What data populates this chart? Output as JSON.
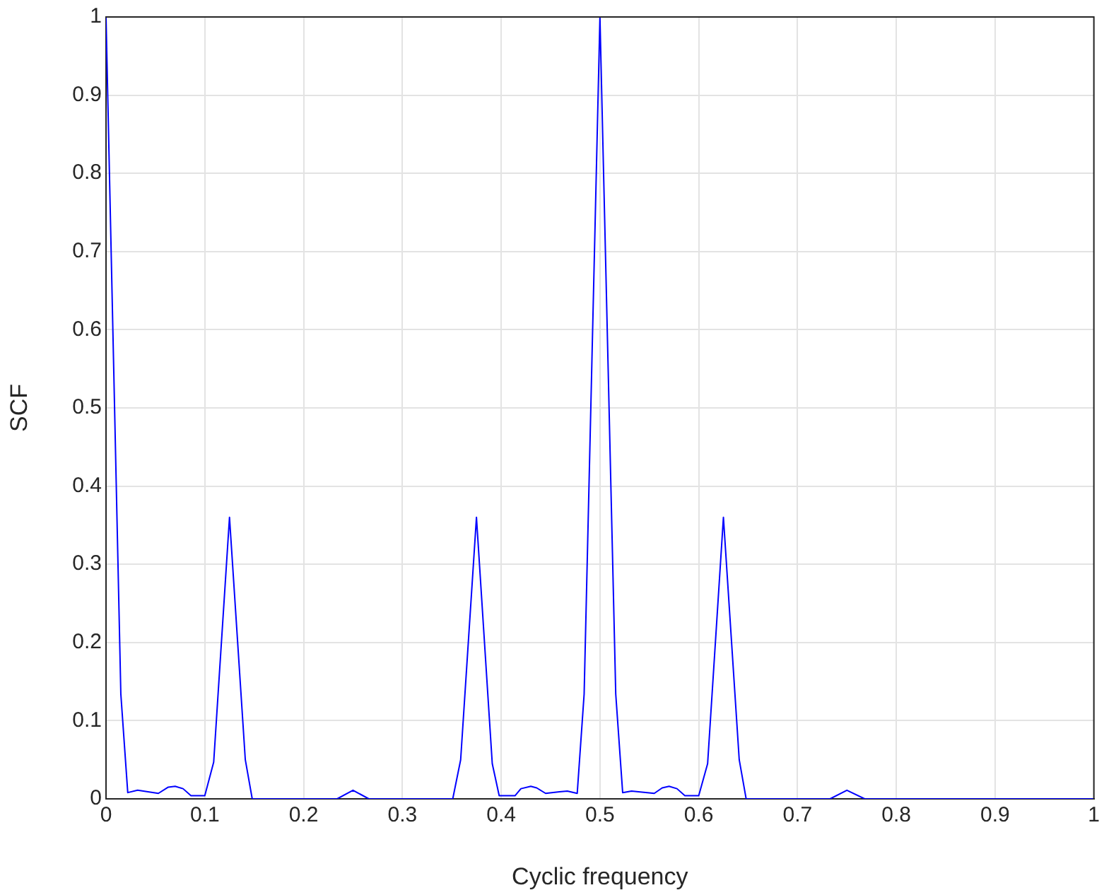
{
  "chart_data": {
    "type": "line",
    "xlabel": "Cyclic frequency",
    "ylabel": "SCF",
    "x": [
      0,
      0.015,
      0.022,
      0.032,
      0.053,
      0.063,
      0.07,
      0.078,
      0.086,
      0.1,
      0.109,
      0.125,
      0.141,
      0.148,
      0.234,
      0.25,
      0.266,
      0.351,
      0.359,
      0.375,
      0.391,
      0.398,
      0.414,
      0.42,
      0.43,
      0.436,
      0.445,
      0.459,
      0.467,
      0.477,
      0.484,
      0.5,
      0.516,
      0.523,
      0.532,
      0.555,
      0.563,
      0.57,
      0.578,
      0.586,
      0.6,
      0.609,
      0.625,
      0.641,
      0.648,
      0.733,
      0.75,
      0.768,
      1
    ],
    "series": [
      {
        "color": "#0000ff",
        "values": [
          1,
          0.134,
          0.008,
          0.011,
          0.007,
          0.015,
          0.016,
          0.013,
          0.004,
          0.004,
          0.047,
          0.36,
          0.05,
          0,
          0,
          0.011,
          0,
          0,
          0.05,
          0.36,
          0.045,
          0.004,
          0.004,
          0.013,
          0.016,
          0.014,
          0.007,
          0.009,
          0.01,
          0.007,
          0.134,
          1,
          0.134,
          0.008,
          0.01,
          0.007,
          0.014,
          0.016,
          0.013,
          0.004,
          0.004,
          0.045,
          0.36,
          0.05,
          0,
          0,
          0.011,
          0,
          0
        ]
      }
    ],
    "xlim": [
      0,
      1
    ],
    "xticks": [
      0,
      0.1,
      0.2,
      0.3,
      0.4,
      0.5,
      0.6,
      0.7,
      0.8,
      0.9,
      1
    ],
    "ylim": [
      0,
      1
    ],
    "yticks": [
      0,
      0.1,
      0.2,
      0.3,
      0.4,
      0.5,
      0.6,
      0.7,
      0.8,
      0.9,
      1
    ],
    "grid": true,
    "legend": false,
    "marker": "none",
    "line_style": "solid"
  }
}
